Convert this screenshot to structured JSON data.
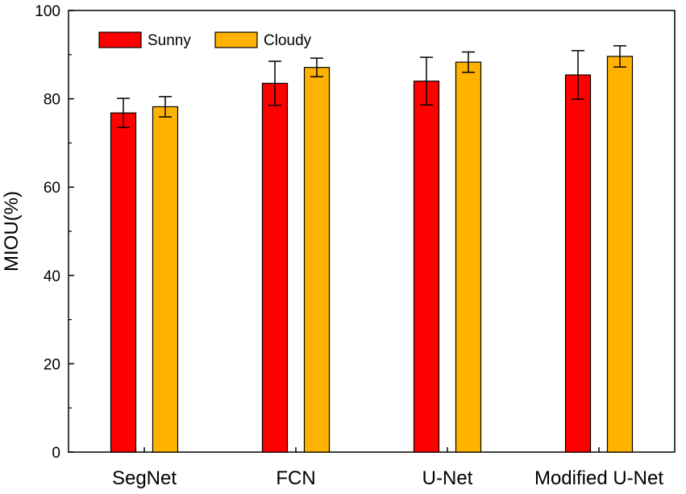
{
  "chart_data": {
    "type": "bar",
    "ylabel": "MIOU(%)",
    "xlabel": "",
    "ylim": [
      0,
      100
    ],
    "yticks": [
      0,
      20,
      40,
      60,
      80,
      100
    ],
    "categories": [
      "SegNet",
      "FCN",
      "U-Net",
      "Modified U-Net"
    ],
    "series": [
      {
        "name": "Sunny",
        "color": "#ff0000",
        "values": [
          76.8,
          83.5,
          84.0,
          85.4
        ],
        "errors": [
          3.3,
          5.0,
          5.4,
          5.5
        ]
      },
      {
        "name": "Cloudy",
        "color": "#ffb300",
        "values": [
          78.2,
          87.1,
          88.3,
          89.6
        ],
        "errors": [
          2.3,
          2.1,
          2.3,
          2.4
        ]
      }
    ],
    "legend_position": "top-left",
    "grid": false
  }
}
